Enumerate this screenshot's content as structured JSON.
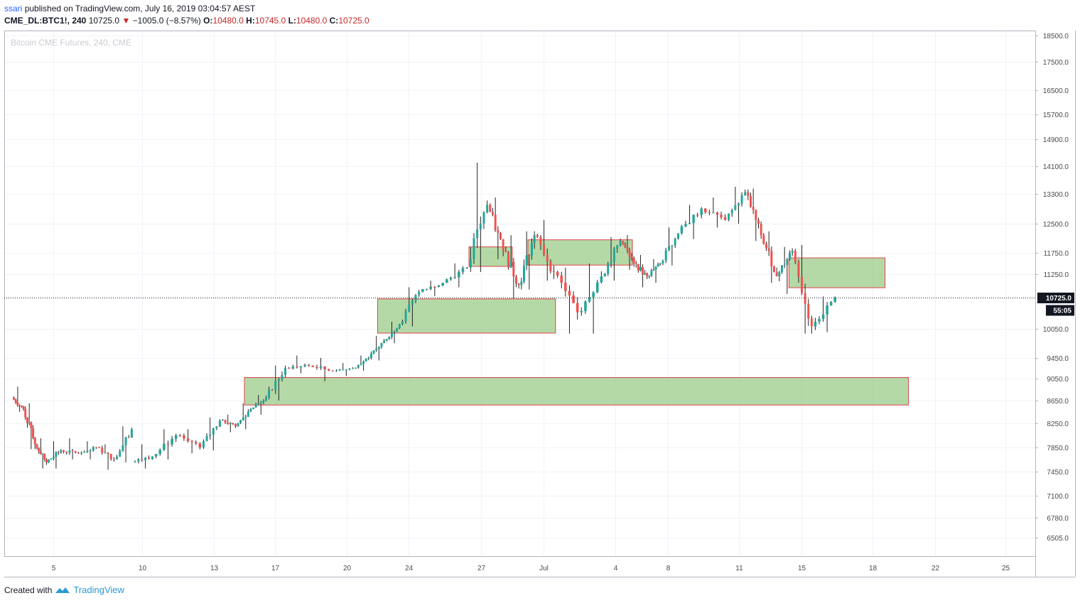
{
  "header": {
    "author": "ssari",
    "published_text": "published on TradingView.com, July 16, 2019 03:04:57 AEST",
    "symbol": "CME_DL:BTC1!, 240",
    "last": "10725.0",
    "change": "−1005.0 (−8.57%)",
    "o_label": "O:",
    "o_value": "10480.0",
    "h_label": "H:",
    "h_value": "10745.0",
    "l_label": "L:",
    "l_value": "10480.0",
    "c_label": "C:",
    "c_value": "10725.0"
  },
  "footer": {
    "created_with": "Created with",
    "brand": "TradingView"
  },
  "colors": {
    "up": "#26a69a",
    "down": "#ef5350",
    "zone_fill": "#9bcc8a",
    "zone_border": "#e0444a",
    "grid": "#f0f3fa"
  },
  "chart_data": {
    "type": "candlestick",
    "title": "Bitcoin CME Futures, 240, CME",
    "y_ticks": [
      "18500.0",
      "17500.0",
      "16500.0",
      "15700.0",
      "14900.0",
      "14100.0",
      "13300.0",
      "12500.0",
      "11750.0",
      "11250.0",
      "10050.0",
      "9450.0",
      "9050.0",
      "8650.0",
      "8250.0",
      "7850.0",
      "7450.0",
      "7100.0",
      "6780.0",
      "6505.0"
    ],
    "x_ticks": [
      {
        "label": "5",
        "day": 5
      },
      {
        "label": "10",
        "day": 10
      },
      {
        "label": "13",
        "day": 13
      },
      {
        "label": "17",
        "day": 17
      },
      {
        "label": "20",
        "day": 20
      },
      {
        "label": "24",
        "day": 24
      },
      {
        "label": "27",
        "day": 27
      },
      {
        "label": "Jul",
        "day": 31
      },
      {
        "label": "4",
        "day": 34
      },
      {
        "label": "8",
        "day": 38
      },
      {
        "label": "11",
        "day": 41
      },
      {
        "label": "15",
        "day": 45
      },
      {
        "label": "18",
        "day": 48
      },
      {
        "label": "22",
        "day": 52
      },
      {
        "label": "25",
        "day": 55
      }
    ],
    "last_price": 10725.0,
    "last_price_label": "10725.0",
    "countdown_label": "55:05",
    "zones": [
      {
        "start_day": 26.5,
        "end_day": 29.0,
        "low": 11430,
        "high": 11900
      },
      {
        "start_day": 30.0,
        "end_day": 35.3,
        "low": 11460,
        "high": 12080
      },
      {
        "start_day": 22.0,
        "end_day": 31.5,
        "low": 9960,
        "high": 10690
      },
      {
        "start_day": 44.2,
        "end_day": 48.8,
        "low": 10940,
        "high": 11630
      },
      {
        "start_day": 15.0,
        "end_day": 50.3,
        "low": 8570,
        "high": 9070
      }
    ],
    "daily": [
      {
        "day": 2,
        "open": 8700,
        "high": 8900,
        "close": 8500,
        "low": 8450
      },
      {
        "day": 3,
        "open": 8500,
        "high": 8600,
        "close": 7900,
        "low": 7820
      },
      {
        "day": 4,
        "open": 7900,
        "high": 8000,
        "close": 7600,
        "low": 7500
      },
      {
        "day": 5,
        "open": 7600,
        "high": 7950,
        "close": 7800,
        "low": 7500
      },
      {
        "day": 6,
        "open": 7800,
        "high": 8000,
        "close": 7750,
        "low": 7650
      },
      {
        "day": 7,
        "open": 7750,
        "high": 7950,
        "close": 7850,
        "low": 7650
      },
      {
        "day": 8,
        "open": 7850,
        "high": 7900,
        "close": 7650,
        "low": 7480
      },
      {
        "day": 9,
        "open": 7650,
        "high": 8200,
        "close": 8150,
        "low": 7600
      },
      {
        "day": 10,
        "open": 7600,
        "high": 7900,
        "close": 7700,
        "low": 7500
      },
      {
        "day": 11,
        "open": 7700,
        "high": 8150,
        "close": 8050,
        "low": 7650
      },
      {
        "day": 12,
        "open": 8050,
        "high": 8150,
        "close": 7850,
        "low": 7750
      },
      {
        "day": 13,
        "open": 7850,
        "high": 8350,
        "close": 8300,
        "low": 7800
      },
      {
        "day": 14,
        "open": 8300,
        "high": 8400,
        "close": 8200,
        "low": 8100
      },
      {
        "day": 15,
        "open": 8200,
        "high": 8600,
        "close": 8500,
        "low": 8150
      },
      {
        "day": 16,
        "open": 8500,
        "high": 8750,
        "close": 8700,
        "low": 8400
      },
      {
        "day": 17,
        "open": 8700,
        "high": 9300,
        "close": 9250,
        "low": 8650
      },
      {
        "day": 18,
        "open": 9250,
        "high": 9500,
        "close": 9300,
        "low": 9150
      },
      {
        "day": 19,
        "open": 9300,
        "high": 9450,
        "close": 9200,
        "low": 9000
      },
      {
        "day": 20,
        "open": 9200,
        "high": 9350,
        "close": 9250,
        "low": 9100
      },
      {
        "day": 21,
        "open": 9250,
        "high": 9500,
        "close": 9450,
        "low": 9200
      },
      {
        "day": 22,
        "open": 9450,
        "high": 9900,
        "close": 9800,
        "low": 9400
      },
      {
        "day": 23,
        "open": 9800,
        "high": 10200,
        "close": 10150,
        "low": 9750
      },
      {
        "day": 24,
        "open": 10150,
        "high": 10950,
        "close": 10850,
        "low": 10100
      },
      {
        "day": 25,
        "open": 10850,
        "high": 11100,
        "close": 11050,
        "low": 10750
      },
      {
        "day": 26,
        "open": 11050,
        "high": 11500,
        "close": 11400,
        "low": 10950
      },
      {
        "day": 27,
        "open": 11400,
        "high": 14200,
        "close": 13000,
        "low": 11300
      },
      {
        "day": 28,
        "open": 13000,
        "high": 13200,
        "close": 11800,
        "low": 11600
      },
      {
        "day": 29,
        "open": 11800,
        "high": 12200,
        "close": 11000,
        "low": 10700
      },
      {
        "day": 30,
        "open": 11000,
        "high": 12300,
        "close": 12200,
        "low": 10900
      },
      {
        "day": 31,
        "open": 12200,
        "high": 12600,
        "close": 11300,
        "low": 11100
      },
      {
        "day": 32,
        "open": 11300,
        "high": 11400,
        "close": 10400,
        "low": 9950
      },
      {
        "day": 33,
        "open": 10400,
        "high": 11500,
        "close": 11200,
        "low": 9950
      },
      {
        "day": 34,
        "open": 11200,
        "high": 12150,
        "close": 12050,
        "low": 11100
      },
      {
        "day": 35,
        "open": 12050,
        "high": 12200,
        "close": 11500,
        "low": 11350
      },
      {
        "day": 36,
        "open": 11500,
        "high": 11700,
        "close": 11200,
        "low": 10950
      },
      {
        "day": 37,
        "open": 11200,
        "high": 11600,
        "close": 11500,
        "low": 11050
      },
      {
        "day": 38,
        "open": 11500,
        "high": 12400,
        "close": 12250,
        "low": 11450
      },
      {
        "day": 39,
        "open": 12250,
        "high": 13000,
        "close": 12900,
        "low": 12100
      },
      {
        "day": 40,
        "open": 12900,
        "high": 13200,
        "close": 12600,
        "low": 12400
      },
      {
        "day": 41,
        "open": 12600,
        "high": 13500,
        "close": 13350,
        "low": 12500
      },
      {
        "day": 42,
        "open": 13350,
        "high": 13450,
        "close": 12200,
        "low": 12050
      },
      {
        "day": 43,
        "open": 12200,
        "high": 12300,
        "close": 11200,
        "low": 11050
      },
      {
        "day": 44,
        "open": 11200,
        "high": 11900,
        "close": 11800,
        "low": 10800
      },
      {
        "day": 45,
        "open": 11800,
        "high": 11950,
        "close": 10100,
        "low": 9950
      },
      {
        "day": 46,
        "open": 10100,
        "high": 10745,
        "close": 10725,
        "low": 9980
      }
    ]
  }
}
